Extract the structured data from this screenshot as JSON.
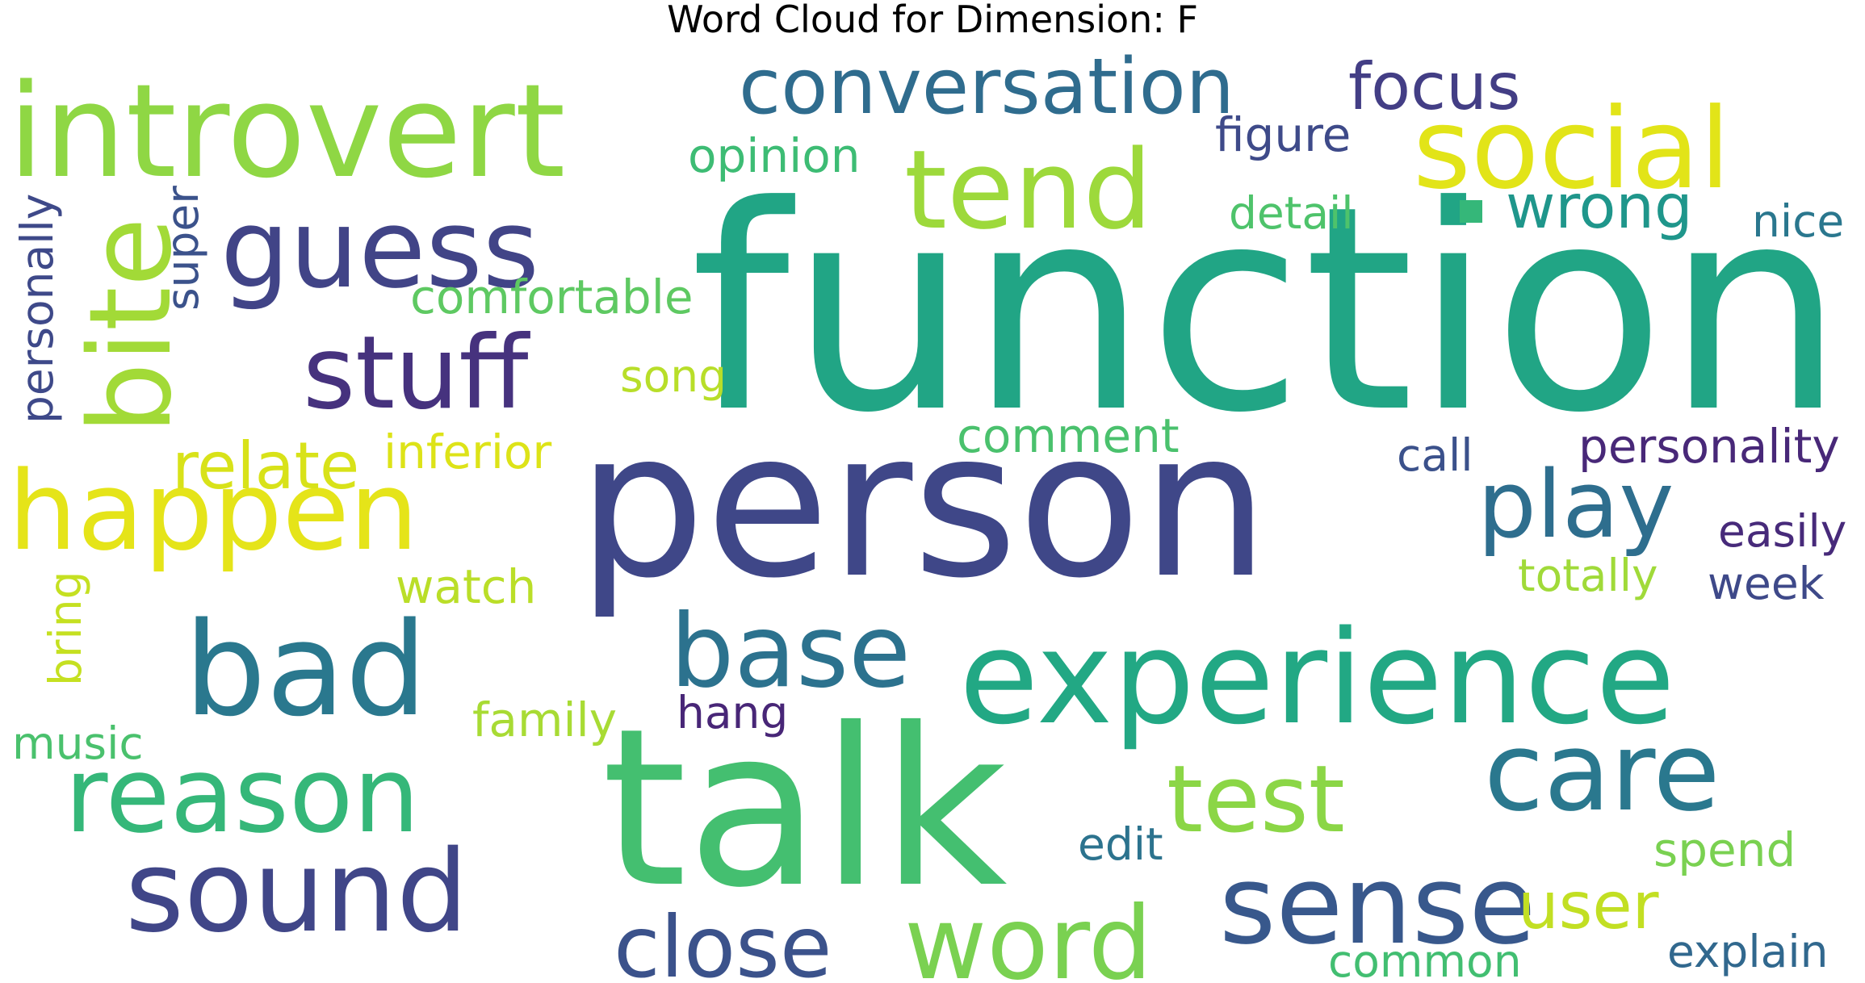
{
  "title": "Word Cloud for Dimension: F",
  "chart_data": {
    "type": "wordcloud",
    "title": "Word Cloud for Dimension: F",
    "colormap": "viridis",
    "background": "#ffffff",
    "words": [
      {
        "text": "function",
        "weight": 100,
        "color": "#21a585",
        "vertical": false
      },
      {
        "text": "person",
        "weight": 78,
        "color": "#3f4788",
        "vertical": false
      },
      {
        "text": "talk",
        "weight": 76,
        "color": "#44bf70",
        "vertical": false
      },
      {
        "text": "experience",
        "weight": 55,
        "color": "#22a884",
        "vertical": false
      },
      {
        "text": "introvert",
        "weight": 52,
        "color": "#8fd744",
        "vertical": false
      },
      {
        "text": "social",
        "weight": 45,
        "color": "#e2e418",
        "vertical": false
      },
      {
        "text": "guess",
        "weight": 44,
        "color": "#414487",
        "vertical": false
      },
      {
        "text": "tend",
        "weight": 44,
        "color": "#9dd93b",
        "vertical": false
      },
      {
        "text": "bad",
        "weight": 44,
        "color": "#2a788e",
        "vertical": false
      },
      {
        "text": "sound",
        "weight": 42,
        "color": "#404688",
        "vertical": false
      },
      {
        "text": "stuff",
        "weight": 40,
        "color": "#46327e",
        "vertical": false
      },
      {
        "text": "happen",
        "weight": 40,
        "color": "#e5e419",
        "vertical": false
      },
      {
        "text": "bite",
        "weight": 40,
        "color": "#a2da37",
        "vertical": true
      },
      {
        "text": "reason",
        "weight": 38,
        "color": "#35b779",
        "vertical": false
      },
      {
        "text": "base",
        "weight": 36,
        "color": "#2c728e",
        "vertical": false
      },
      {
        "text": "care",
        "weight": 36,
        "color": "#2a788e",
        "vertical": false
      },
      {
        "text": "sense",
        "weight": 36,
        "color": "#38588c",
        "vertical": false
      },
      {
        "text": "play",
        "weight": 34,
        "color": "#2e6e8e",
        "vertical": false
      },
      {
        "text": "word",
        "weight": 34,
        "color": "#7ad151",
        "vertical": false
      },
      {
        "text": "conversation",
        "weight": 30,
        "color": "#2f6c8e",
        "vertical": false
      },
      {
        "text": "test",
        "weight": 32,
        "color": "#8bd646",
        "vertical": false
      },
      {
        "text": "close",
        "weight": 30,
        "color": "#3b528b",
        "vertical": false
      },
      {
        "text": "relate",
        "weight": 26,
        "color": "#d8e219",
        "vertical": false
      },
      {
        "text": "focus",
        "weight": 26,
        "color": "#433e85",
        "vertical": false
      },
      {
        "text": "wrong",
        "weight": 25,
        "color": "#1f968b",
        "vertical": false
      },
      {
        "text": "user",
        "weight": 22,
        "color": "#c2df23",
        "vertical": false
      },
      {
        "text": "inferior",
        "weight": 18,
        "color": "#dde318",
        "vertical": false
      },
      {
        "text": "comfortable",
        "weight": 18,
        "color": "#5ec962",
        "vertical": false
      },
      {
        "text": "opinion",
        "weight": 18,
        "color": "#3dbc74",
        "vertical": false
      },
      {
        "text": "figure",
        "weight": 18,
        "color": "#3e4a89",
        "vertical": false
      },
      {
        "text": "comment",
        "weight": 18,
        "color": "#4ac16d",
        "vertical": false
      },
      {
        "text": "personality",
        "weight": 18,
        "color": "#482878",
        "vertical": false
      },
      {
        "text": "watch",
        "weight": 18,
        "color": "#bade28",
        "vertical": false
      },
      {
        "text": "family",
        "weight": 18,
        "color": "#a8db34",
        "vertical": false
      },
      {
        "text": "spend",
        "weight": 18,
        "color": "#7ad151",
        "vertical": false
      },
      {
        "text": "detail",
        "weight": 17,
        "color": "#4ec36b",
        "vertical": false
      },
      {
        "text": "song",
        "weight": 17,
        "color": "#b8de29",
        "vertical": false
      },
      {
        "text": "call",
        "weight": 17,
        "color": "#3b518b",
        "vertical": false
      },
      {
        "text": "easily",
        "weight": 17,
        "color": "#472a7a",
        "vertical": false
      },
      {
        "text": "totally",
        "weight": 17,
        "color": "#a0da39",
        "vertical": false
      },
      {
        "text": "week",
        "weight": 17,
        "color": "#3e4989",
        "vertical": false
      },
      {
        "text": "hang",
        "weight": 17,
        "color": "#482677",
        "vertical": false
      },
      {
        "text": "music",
        "weight": 17,
        "color": "#4ac16d",
        "vertical": false
      },
      {
        "text": "edit",
        "weight": 17,
        "color": "#2c738e",
        "vertical": false
      },
      {
        "text": "explain",
        "weight": 17,
        "color": "#31688e",
        "vertical": false
      },
      {
        "text": "common",
        "weight": 17,
        "color": "#42be71",
        "vertical": false
      },
      {
        "text": "nice",
        "weight": 17,
        "color": "#2a778e",
        "vertical": false
      },
      {
        "text": "personally",
        "weight": 17,
        "color": "#3e4989",
        "vertical": true
      },
      {
        "text": "super",
        "weight": 17,
        "color": "#3b528b",
        "vertical": true
      },
      {
        "text": "bring",
        "weight": 17,
        "color": "#c5e021",
        "vertical": true
      }
    ]
  }
}
